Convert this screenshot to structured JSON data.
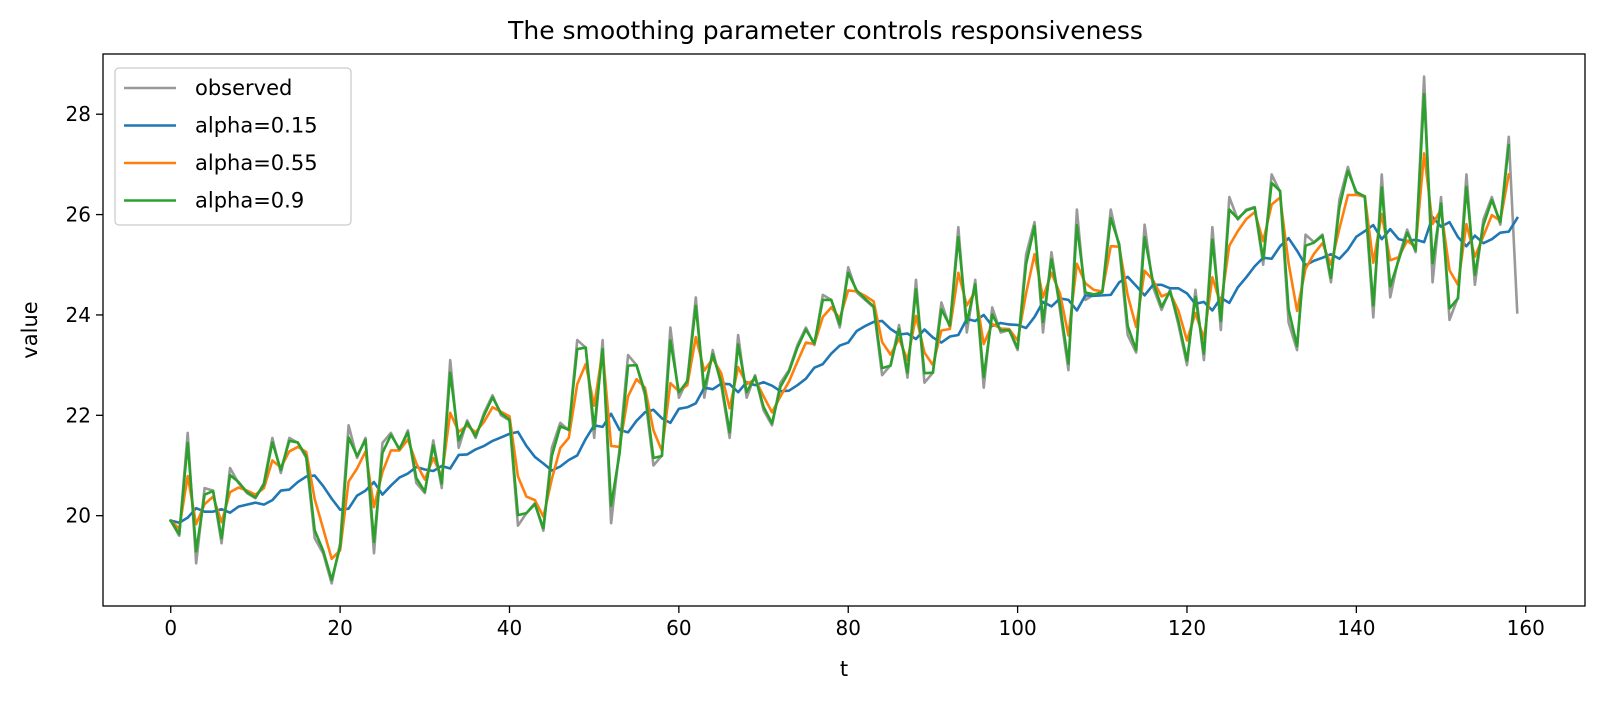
{
  "chart_data": {
    "type": "line",
    "title": "The smoothing parameter controls responsiveness",
    "xlabel": "t",
    "ylabel": "value",
    "xlim": [
      -8,
      167
    ],
    "ylim": [
      18.2,
      29.2
    ],
    "xticks": [
      0,
      20,
      40,
      60,
      80,
      100,
      120,
      140,
      160
    ],
    "yticks": [
      20,
      22,
      24,
      26,
      28
    ],
    "grid": false,
    "legend_position": "upper-left",
    "series": [
      {
        "name": "observed",
        "color": "#999999",
        "x_start": 0,
        "values": [
          19.9,
          19.6,
          21.65,
          19.05,
          20.55,
          20.5,
          19.45,
          20.95,
          20.65,
          20.45,
          20.35,
          20.65,
          21.55,
          20.85,
          21.55,
          21.45,
          21.15,
          19.55,
          19.25,
          18.65,
          19.45,
          21.8,
          21.15,
          21.55,
          19.25,
          21.45,
          21.65,
          21.3,
          21.7,
          20.65,
          20.45,
          21.5,
          20.55,
          23.1,
          21.35,
          21.9,
          21.55,
          22.05,
          22.4,
          22.0,
          21.9,
          19.8,
          20.05,
          20.25,
          19.7,
          21.35,
          21.85,
          21.7,
          23.5,
          23.35,
          21.55,
          23.5,
          19.85,
          21.35,
          23.2,
          23.0,
          22.4,
          21.0,
          21.2,
          23.75,
          22.35,
          22.7,
          24.35,
          22.35,
          23.3,
          22.6,
          21.55,
          23.6,
          22.35,
          22.8,
          22.1,
          21.8,
          22.65,
          22.9,
          23.4,
          23.75,
          23.4,
          24.4,
          24.3,
          23.75,
          24.95,
          24.45,
          24.3,
          24.15,
          22.8,
          23.0,
          23.8,
          22.75,
          24.7,
          22.65,
          22.85,
          24.25,
          23.75,
          25.75,
          23.65,
          24.7,
          22.55,
          24.15,
          23.65,
          23.7,
          23.3,
          25.2,
          25.85,
          23.65,
          25.25,
          24.1,
          22.9,
          26.1,
          24.3,
          24.4,
          24.45,
          26.1,
          25.35,
          23.6,
          23.25,
          25.8,
          24.55,
          24.1,
          24.5,
          23.8,
          23.0,
          24.5,
          23.1,
          25.75,
          23.7,
          26.35,
          25.9,
          26.1,
          26.15,
          25.0,
          26.8,
          26.45,
          23.85,
          23.3,
          25.6,
          25.45,
          25.6,
          24.65,
          26.3,
          26.95,
          26.4,
          26.35,
          23.95,
          26.8,
          24.35,
          25.15,
          25.7,
          25.25,
          28.75,
          24.65,
          26.35,
          23.9,
          24.35,
          26.8,
          24.6,
          25.9,
          26.35,
          25.8,
          27.55,
          24.05
        ]
      },
      {
        "name": "alpha=0.15",
        "color": "#1f77b4",
        "x_start": 0,
        "values": [
          19.9,
          19.86,
          19.96,
          20.15,
          20.08,
          20.08,
          20.13,
          20.06,
          20.18,
          20.22,
          20.26,
          20.22,
          20.31,
          20.5,
          20.52,
          20.67,
          20.78,
          20.8,
          20.59,
          20.34,
          20.12,
          20.14,
          20.4,
          20.5,
          20.67,
          20.42,
          20.6,
          20.76,
          20.84,
          20.97,
          20.92,
          20.89,
          20.99,
          20.94,
          21.21,
          21.22,
          21.32,
          21.39,
          21.49,
          21.56,
          21.63,
          21.67,
          21.39,
          21.17,
          21.04,
          20.9,
          20.98,
          21.11,
          21.2,
          21.53,
          21.8,
          21.77,
          22.03,
          21.71,
          21.66,
          21.89,
          22.06,
          22.11,
          21.94,
          21.85,
          22.13,
          22.16,
          22.24,
          22.55,
          22.52,
          22.63,
          22.62,
          22.46,
          22.66,
          22.6,
          22.66,
          22.59,
          22.48,
          22.49,
          22.6,
          22.73,
          22.95,
          23.02,
          23.23,
          23.39,
          23.45,
          23.68,
          23.78,
          23.86,
          23.88,
          23.72,
          23.61,
          23.63,
          23.52,
          23.71,
          23.55,
          23.45,
          23.57,
          23.6,
          23.92,
          23.88,
          24.0,
          23.78,
          23.84,
          23.81,
          23.8,
          23.74,
          23.96,
          24.26,
          24.17,
          24.33,
          24.3,
          24.09,
          24.39,
          24.38,
          24.39,
          24.4,
          24.65,
          24.76,
          24.58,
          24.39,
          24.6,
          24.6,
          24.53,
          24.53,
          24.43,
          24.22,
          24.26,
          24.09,
          24.34,
          24.24,
          24.55,
          24.75,
          24.97,
          25.14,
          25.12,
          25.37,
          25.53,
          25.28,
          24.99,
          25.08,
          25.14,
          25.21,
          25.12,
          25.3,
          25.56,
          25.67,
          25.79,
          25.51,
          25.71,
          25.51,
          25.47,
          25.5,
          25.45,
          25.95,
          25.76,
          25.85,
          25.55,
          25.37,
          25.58,
          25.43,
          25.51,
          25.64,
          25.66,
          25.93
        ]
      },
      {
        "name": "alpha=0.55",
        "color": "#ff7f0e",
        "x_start": 0,
        "values": [
          19.9,
          19.74,
          20.79,
          19.83,
          20.23,
          20.38,
          19.87,
          20.47,
          20.56,
          20.5,
          20.42,
          20.55,
          21.1,
          20.96,
          21.28,
          21.37,
          21.27,
          20.33,
          19.74,
          19.14,
          19.31,
          20.68,
          20.94,
          21.28,
          20.17,
          20.87,
          21.3,
          21.3,
          21.52,
          21.04,
          20.72,
          21.15,
          20.78,
          22.05,
          21.67,
          21.8,
          21.66,
          21.87,
          22.16,
          22.07,
          21.98,
          20.78,
          20.38,
          20.31,
          19.98,
          20.73,
          21.35,
          21.55,
          22.62,
          23.02,
          22.19,
          23.29,
          21.39,
          21.37,
          22.38,
          22.72,
          22.55,
          21.7,
          21.29,
          22.64,
          22.48,
          22.6,
          23.56,
          22.89,
          23.13,
          22.84,
          22.14,
          22.96,
          22.62,
          22.72,
          22.38,
          22.06,
          22.38,
          22.67,
          23.07,
          23.45,
          23.42,
          23.96,
          24.15,
          23.93,
          24.49,
          24.47,
          24.38,
          24.27,
          23.46,
          23.21,
          23.53,
          23.1,
          23.98,
          23.25,
          23.0,
          23.69,
          23.72,
          24.84,
          24.19,
          24.47,
          23.42,
          23.82,
          23.73,
          23.72,
          23.49,
          24.43,
          25.21,
          24.35,
          24.84,
          24.43,
          23.59,
          25.02,
          24.63,
          24.5,
          24.47,
          25.37,
          25.36,
          24.39,
          23.76,
          24.88,
          24.69,
          24.37,
          24.44,
          24.08,
          23.49,
          24.04,
          23.53,
          24.75,
          24.2,
          25.38,
          25.67,
          25.91,
          26.05,
          25.47,
          26.2,
          26.34,
          25.03,
          24.08,
          24.92,
          25.22,
          25.43,
          25.0,
          25.72,
          26.39,
          26.39,
          26.37,
          25.04,
          26.01,
          25.09,
          25.15,
          25.48,
          25.35,
          27.22,
          25.81,
          26.1,
          24.89,
          24.6,
          25.81,
          25.16,
          25.57,
          25.99,
          25.88,
          26.8
        ]
      },
      {
        "name": "alpha=0.9",
        "color": "#2ca02c",
        "x_start": 0,
        "values": [
          19.9,
          19.63,
          21.45,
          19.29,
          20.42,
          20.49,
          19.55,
          20.81,
          20.67,
          20.47,
          20.36,
          20.62,
          21.46,
          20.91,
          21.49,
          21.46,
          21.18,
          19.71,
          19.3,
          18.72,
          19.38,
          21.56,
          21.19,
          21.51,
          19.48,
          21.25,
          21.61,
          21.33,
          21.66,
          20.75,
          20.48,
          21.4,
          20.64,
          22.85,
          21.5,
          21.86,
          21.58,
          22.0,
          22.36,
          22.04,
          21.91,
          20.01,
          20.05,
          20.23,
          19.75,
          21.19,
          21.78,
          21.71,
          23.32,
          23.35,
          21.73,
          23.32,
          20.2,
          21.24,
          22.99,
          23.0,
          22.46,
          21.15,
          21.19,
          23.49,
          22.46,
          22.68,
          24.18,
          22.53,
          23.22,
          22.66,
          21.66,
          23.41,
          22.46,
          22.77,
          22.17,
          21.84,
          22.57,
          22.87,
          23.35,
          23.71,
          23.43,
          24.3,
          24.3,
          23.81,
          24.84,
          24.49,
          24.32,
          24.17,
          22.94,
          22.99,
          23.72,
          22.85,
          24.51,
          22.84,
          22.85,
          24.11,
          23.79,
          25.55,
          23.84,
          24.61,
          22.76,
          24.01,
          23.69,
          23.7,
          23.34,
          25.01,
          25.77,
          23.86,
          25.11,
          24.2,
          23.03,
          25.79,
          24.45,
          24.41,
          24.45,
          25.93,
          25.41,
          23.78,
          23.3,
          25.55,
          24.65,
          24.16,
          24.47,
          23.87,
          23.09,
          24.36,
          23.23,
          25.5,
          23.88,
          26.1,
          25.92,
          26.08,
          26.14,
          25.11,
          26.63,
          26.47,
          24.11,
          23.38,
          25.38,
          25.44,
          25.58,
          24.74,
          26.14,
          26.87,
          26.45,
          26.36,
          24.19,
          26.54,
          24.57,
          25.09,
          25.64,
          25.29,
          28.4,
          25.03,
          26.22,
          24.13,
          24.33,
          26.55,
          24.8,
          25.79,
          26.29,
          25.85,
          27.38
        ]
      }
    ]
  }
}
